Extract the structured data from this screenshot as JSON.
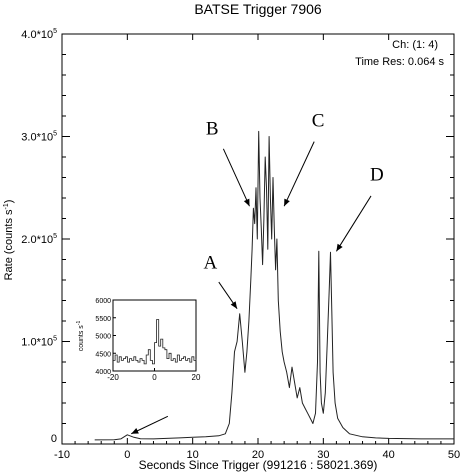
{
  "chart_data": {
    "type": "line",
    "title": "BATSE Trigger 7906",
    "xlabel": "Seconds Since Trigger (991216 : 58021.369)",
    "ylabel_main": "Rate (counts s",
    "ylabel_sup": "-1",
    "ylabel_end": ")",
    "xlim": [
      -10,
      50
    ],
    "ylim": [
      0,
      400000
    ],
    "x_ticks": [
      -10,
      0,
      10,
      20,
      30,
      40,
      50
    ],
    "y_ticks": [
      {
        "value": 100000,
        "base": "1.0*10",
        "exp": "5"
      },
      {
        "value": 200000,
        "base": "2.0*10",
        "exp": "5"
      },
      {
        "value": 300000,
        "base": "3.0*10",
        "exp": "5"
      },
      {
        "value": 400000,
        "base": "4.0*10",
        "exp": "5"
      }
    ],
    "y_zero_label": "0",
    "info": [
      "Ch: (1: 4)",
      "Time Res: 0.064 s"
    ],
    "series": [
      {
        "x": [
          -5,
          -2,
          -1,
          0,
          1,
          2,
          4,
          6,
          8,
          10,
          12,
          14,
          15,
          15.6,
          16,
          16.4,
          16.8,
          17.2,
          17.6,
          18.0,
          18.3,
          18.6,
          18.9,
          19.1,
          19.3,
          19.5,
          19.7,
          19.9,
          20.1,
          20.3,
          20.5,
          20.7,
          20.9,
          21.1,
          21.3,
          21.5,
          21.7,
          21.9,
          22.1,
          22.3,
          22.5,
          22.7,
          22.9,
          23.1,
          23.4,
          23.7,
          24.0,
          24.4,
          24.8,
          25.2,
          25.6,
          26.0,
          26.4,
          26.8,
          27.2,
          27.6,
          28.0,
          28.4,
          28.8,
          29.1,
          29.3,
          29.5,
          29.7,
          30.0,
          30.3,
          30.6,
          30.9,
          31.1,
          31.3,
          31.5,
          31.8,
          32.2,
          33,
          34,
          36,
          38,
          40,
          45,
          50
        ],
        "y": [
          4000,
          4200,
          5000,
          9000,
          6500,
          5200,
          5000,
          5500,
          6000,
          6500,
          7000,
          8000,
          10000,
          20000,
          50000,
          90000,
          100000,
          127000,
          100000,
          70000,
          90000,
          120000,
          160000,
          190000,
          230000,
          215000,
          250000,
          200000,
          305000,
          240000,
          210000,
          175000,
          220000,
          280000,
          250000,
          190000,
          300000,
          240000,
          200000,
          260000,
          210000,
          170000,
          200000,
          140000,
          110000,
          90000,
          80000,
          70000,
          55000,
          75000,
          60000,
          45000,
          55000,
          40000,
          35000,
          30000,
          25000,
          20000,
          30000,
          80000,
          188000,
          70000,
          40000,
          30000,
          50000,
          100000,
          150000,
          187000,
          130000,
          70000,
          40000,
          25000,
          16000,
          10000,
          7000,
          6000,
          5500,
          5000,
          5000
        ]
      }
    ],
    "annotations": [
      {
        "label": "A",
        "text_x": 12.7,
        "text_y": 171000,
        "from_x": 14.0,
        "from_y": 158000,
        "to_x": 16.8,
        "to_y": 132000
      },
      {
        "label": "B",
        "text_x": 13.0,
        "text_y": 302000,
        "from_x": 14.7,
        "from_y": 288000,
        "to_x": 18.7,
        "to_y": 232000
      },
      {
        "label": "C",
        "text_x": 29.2,
        "text_y": 310000,
        "from_x": 28.6,
        "from_y": 295000,
        "to_x": 24.0,
        "to_y": 232000
      },
      {
        "label": "D",
        "text_x": 38.2,
        "text_y": 257000,
        "from_x": 37.3,
        "from_y": 242000,
        "to_x": 32.0,
        "to_y": 188000
      },
      {
        "label": "",
        "from_x": 6.2,
        "from_y": 27000,
        "to_x": 0.6,
        "to_y": 10000
      }
    ],
    "inset": {
      "ylabel_main": "counts s",
      "ylabel_sup": "-1",
      "xlim": [
        -20,
        20
      ],
      "ylim": [
        4000,
        6000
      ],
      "x_ticks": [
        -20,
        0,
        20
      ],
      "y_ticks": [
        4000,
        4500,
        5000,
        5500,
        6000
      ],
      "x": [
        -20,
        -19,
        -18,
        -17,
        -16,
        -15,
        -14,
        -13,
        -12,
        -11,
        -10,
        -9,
        -8,
        -7,
        -6,
        -5,
        -4,
        -3,
        -2,
        -1,
        0,
        1,
        2,
        3,
        4,
        5,
        6,
        7,
        8,
        9,
        10,
        11,
        12,
        13,
        14,
        15,
        16,
        17,
        18,
        19,
        20
      ],
      "y": [
        4300,
        4450,
        4250,
        4400,
        4300,
        4350,
        4400,
        4250,
        4350,
        4300,
        4400,
        4300,
        4250,
        4350,
        4300,
        4200,
        4450,
        4600,
        4300,
        4200,
        4800,
        5450,
        4700,
        4900,
        4650,
        4600,
        4350,
        4500,
        4300,
        4350,
        4250,
        4450,
        4300,
        4350,
        4400,
        4300,
        4350,
        4250,
        4400,
        4300,
        4350
      ]
    }
  }
}
